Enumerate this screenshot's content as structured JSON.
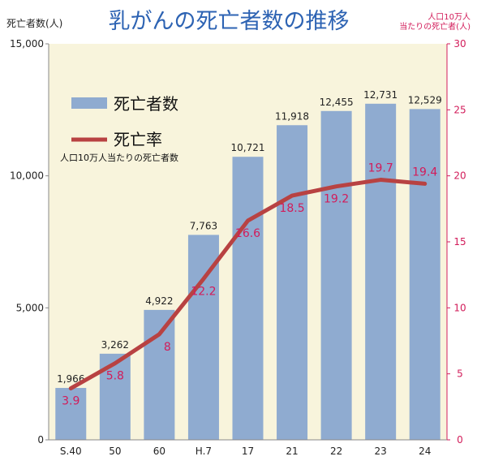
{
  "chart_data": {
    "type": "bar",
    "title": "乳がんの死亡者数の推移",
    "categories": [
      "S.40",
      "50",
      "60",
      "H.7",
      "17",
      "21",
      "22",
      "23",
      "24"
    ],
    "ylabel_left": "死亡者数(人)",
    "ylabel_right_lines": [
      "人口10万人",
      "当たりの死亡者(人)"
    ],
    "left_axis": {
      "min": 0,
      "max": 15000,
      "ticks": [
        "0",
        "5,000",
        "10,000",
        "15,000"
      ]
    },
    "right_axis": {
      "min": 0,
      "max": 30,
      "ticks": [
        "0",
        "5",
        "10",
        "15",
        "20",
        "25",
        "30"
      ]
    },
    "series": [
      {
        "name": "死亡者数",
        "type": "bar",
        "axis": "left",
        "color": "#8fabd0",
        "values": [
          1966,
          3262,
          4922,
          7763,
          10721,
          11918,
          12455,
          12731,
          12529
        ],
        "labels": [
          "1,966",
          "3,262",
          "4,922",
          "7,763",
          "10,721",
          "11,918",
          "12,455",
          "12,731",
          "12,529"
        ]
      },
      {
        "name": "死亡率",
        "subtitle": "人口10万人当たりの死亡者数",
        "type": "line",
        "axis": "right",
        "color": "#b84242",
        "values": [
          3.9,
          5.8,
          8,
          12.2,
          16.6,
          18.5,
          19.2,
          19.7,
          19.4
        ],
        "labels": [
          "3.9",
          "5.8",
          "8",
          "12.2",
          "16.6",
          "18.5",
          "19.2",
          "19.7",
          "19.4"
        ]
      }
    ],
    "plot_background": "#f8f4dc",
    "grid": false,
    "legend_position": "upper-left inside plot"
  }
}
